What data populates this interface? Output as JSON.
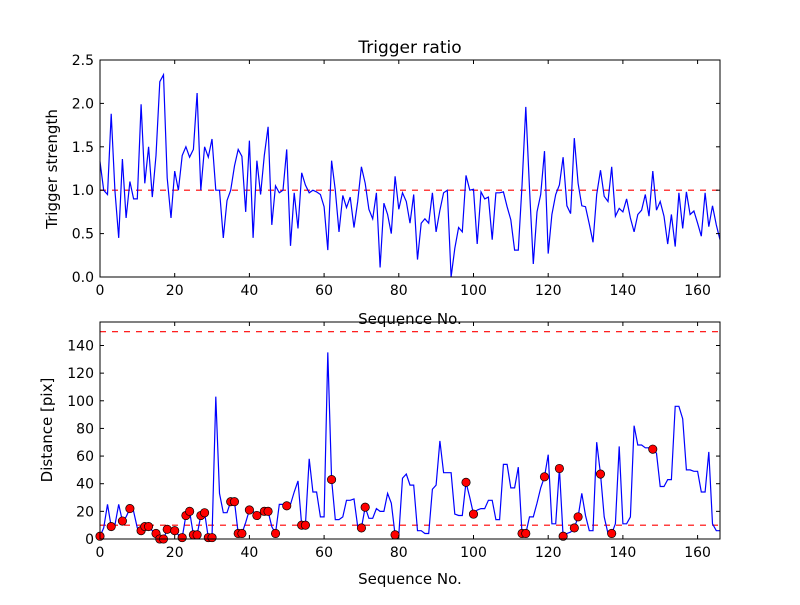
{
  "chart_data": [
    {
      "type": "line",
      "title": "Trigger ratio",
      "xlabel": "Sequence No.",
      "ylabel": "Trigger strength",
      "xlim": [
        0,
        166
      ],
      "ylim": [
        0,
        2.5
      ],
      "xticks": [
        "0",
        "20",
        "40",
        "60",
        "80",
        "100",
        "120",
        "140",
        "160"
      ],
      "yticks": [
        "0.0",
        "0.5",
        "1.0",
        "1.5",
        "2.0",
        "2.5"
      ],
      "line_color": "#0000ff",
      "reference_lines": [
        {
          "y": 1.0,
          "color": "#ff0000",
          "style": "dashed"
        }
      ],
      "series": [
        {
          "name": "trigger strength",
          "values": [
            1.33,
            1.0,
            0.95,
            1.88,
            1.0,
            0.45,
            1.36,
            0.68,
            1.1,
            0.9,
            0.9,
            1.99,
            1.08,
            1.5,
            0.92,
            1.4,
            2.25,
            2.33,
            1.14,
            0.68,
            1.22,
            1.0,
            1.4,
            1.5,
            1.38,
            1.47,
            2.12,
            1.0,
            1.5,
            1.38,
            1.59,
            1.0,
            1.0,
            0.45,
            0.88,
            1.0,
            1.28,
            1.47,
            1.39,
            0.75,
            1.57,
            0.45,
            1.34,
            0.95,
            1.4,
            1.73,
            0.6,
            1.05,
            0.97,
            1.0,
            1.47,
            0.36,
            0.97,
            0.56,
            1.2,
            1.06,
            0.97,
            1.0,
            0.98,
            0.95,
            0.81,
            0.31,
            1.34,
            1.0,
            0.52,
            0.94,
            0.8,
            0.92,
            0.57,
            0.87,
            1.27,
            1.08,
            0.78,
            0.67,
            0.97,
            0.11,
            0.85,
            0.72,
            0.5,
            1.16,
            0.78,
            0.97,
            0.87,
            0.62,
            0.95,
            0.2,
            0.62,
            0.67,
            0.62,
            0.97,
            0.52,
            0.77,
            0.97,
            1.0,
            0.0,
            0.33,
            0.57,
            0.52,
            1.17,
            1.0,
            1.01,
            0.38,
            0.98,
            0.9,
            0.92,
            0.43,
            0.97,
            0.97,
            0.98,
            0.81,
            0.66,
            0.31,
            0.31,
            1.05,
            1.96,
            1.02,
            0.15,
            0.75,
            0.95,
            1.45,
            0.27,
            0.72,
            0.95,
            1.06,
            1.38,
            0.82,
            0.73,
            1.6,
            1.08,
            0.82,
            0.81,
            0.61,
            0.4,
            0.95,
            1.23,
            0.93,
            0.87,
            1.27,
            0.7,
            0.79,
            0.75,
            0.9,
            0.68,
            0.52,
            0.72,
            0.77,
            0.95,
            0.7,
            1.22,
            0.77,
            0.87,
            0.7,
            0.38,
            0.72,
            0.35,
            0.97,
            0.56,
            0.98,
            0.72,
            0.76,
            0.62,
            0.47,
            0.97,
            0.58,
            0.82,
            0.6,
            0.43
          ]
        }
      ]
    },
    {
      "type": "line",
      "title": "",
      "xlabel": "Sequence No.",
      "ylabel": "Distance [pix]",
      "xlim": [
        0,
        166
      ],
      "ylim": [
        0,
        157
      ],
      "xticks": [
        "0",
        "20",
        "40",
        "60",
        "80",
        "100",
        "120",
        "140",
        "160"
      ],
      "yticks": [
        "0",
        "20",
        "40",
        "60",
        "80",
        "100",
        "120",
        "140"
      ],
      "line_color": "#0000ff",
      "marker_color": "#ff0000",
      "reference_lines": [
        {
          "y": 10,
          "color": "#ff0000",
          "style": "dashed"
        },
        {
          "y": 150,
          "color": "#ff0000",
          "style": "dashed"
        }
      ],
      "series": [
        {
          "name": "distance",
          "values": [
            2,
            8,
            25,
            9,
            10,
            25,
            13,
            16,
            22,
            20,
            8,
            6,
            9,
            9,
            6,
            4,
            0,
            0,
            7,
            5,
            6,
            3,
            1,
            17,
            20,
            3,
            3,
            17,
            19,
            1,
            1,
            103,
            33,
            19,
            19,
            27,
            27,
            4,
            4,
            12,
            21,
            20,
            17,
            19,
            20,
            20,
            9,
            4,
            25,
            25,
            24,
            25,
            34,
            42,
            10,
            10,
            58,
            34,
            34,
            16,
            16,
            135,
            43,
            14,
            14,
            16,
            28,
            28,
            29,
            9,
            8,
            23,
            15,
            15,
            22,
            20,
            20,
            33,
            26,
            3,
            3,
            44,
            47,
            39,
            39,
            6,
            6,
            4,
            4,
            36,
            39,
            71,
            48,
            48,
            48,
            18,
            17,
            17,
            41,
            30,
            18,
            21,
            22,
            22,
            28,
            28,
            14,
            14,
            54,
            54,
            37,
            37,
            52,
            4,
            4,
            16,
            16,
            26,
            37,
            45,
            61,
            11,
            11,
            51,
            2,
            4,
            5,
            8,
            16,
            33,
            17,
            6,
            6,
            70,
            47,
            16,
            4,
            4,
            11,
            67,
            11,
            11,
            16,
            82,
            68,
            68,
            66,
            66,
            65,
            62,
            38,
            38,
            43,
            43,
            96,
            96,
            87,
            50,
            50,
            49,
            49,
            34,
            34,
            63,
            11,
            6,
            6
          ]
        }
      ],
      "marker_indices": [
        0,
        3,
        6,
        8,
        11,
        12,
        13,
        15,
        16,
        17,
        18,
        20,
        22,
        23,
        24,
        25,
        26,
        27,
        28,
        29,
        30,
        35,
        36,
        37,
        38,
        40,
        42,
        44,
        45,
        47,
        50,
        54,
        55,
        62,
        70,
        71,
        79,
        98,
        100,
        113,
        114,
        119,
        123,
        124,
        127,
        128,
        134,
        137,
        148
      ]
    }
  ]
}
